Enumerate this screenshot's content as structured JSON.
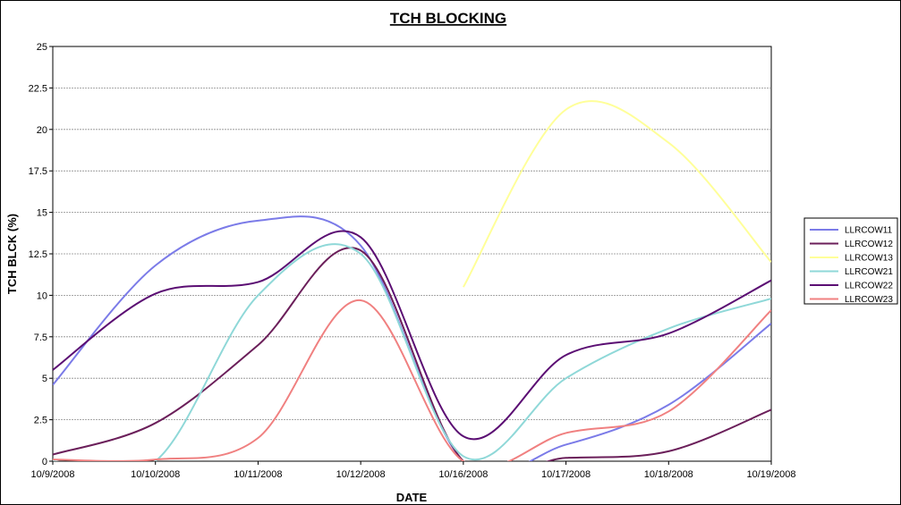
{
  "chart_data": {
    "type": "line",
    "title": "TCH BLOCKING",
    "xlabel": "DATE",
    "ylabel": "TCH BLCK (%)",
    "ylim": [
      0,
      25
    ],
    "yticks": [
      "0",
      "2.5",
      "5",
      "7.5",
      "10",
      "12.5",
      "15",
      "17.5",
      "20",
      "22.5",
      "25"
    ],
    "categories": [
      "10/9/2008",
      "10/10/2008",
      "10/11/2008",
      "10/12/2008",
      "10/16/2008",
      "10/17/2008",
      "10/18/2008",
      "10/19/2008"
    ],
    "grid": true,
    "legend_position": "right",
    "series": [
      {
        "name": "LLRCOW11",
        "color": "#7b7be8",
        "values": [
          4.6,
          11.8,
          14.5,
          13.0,
          0.0,
          1.0,
          3.4,
          8.3
        ]
      },
      {
        "name": "LLRCOW12",
        "color": "#6b1f5a",
        "values": [
          0.4,
          2.3,
          7.0,
          12.7,
          0.0,
          0.2,
          0.6,
          3.1
        ]
      },
      {
        "name": "LLRCOW13",
        "color": "#ffff99",
        "values": [
          null,
          null,
          null,
          null,
          10.5,
          21.2,
          19.2,
          12.0
        ]
      },
      {
        "name": "LLRCOW21",
        "color": "#8fd8d8",
        "values": [
          0.0,
          0.0,
          10.0,
          12.5,
          0.3,
          5.0,
          8.0,
          9.8
        ]
      },
      {
        "name": "LLRCOW22",
        "color": "#5b0e73",
        "values": [
          5.5,
          10.1,
          10.8,
          13.5,
          1.5,
          6.4,
          7.7,
          10.9
        ]
      },
      {
        "name": "LLRCOW23",
        "color": "#f08080",
        "values": [
          0.1,
          0.1,
          1.4,
          9.7,
          0.0,
          1.7,
          3.0,
          9.1
        ]
      }
    ]
  }
}
